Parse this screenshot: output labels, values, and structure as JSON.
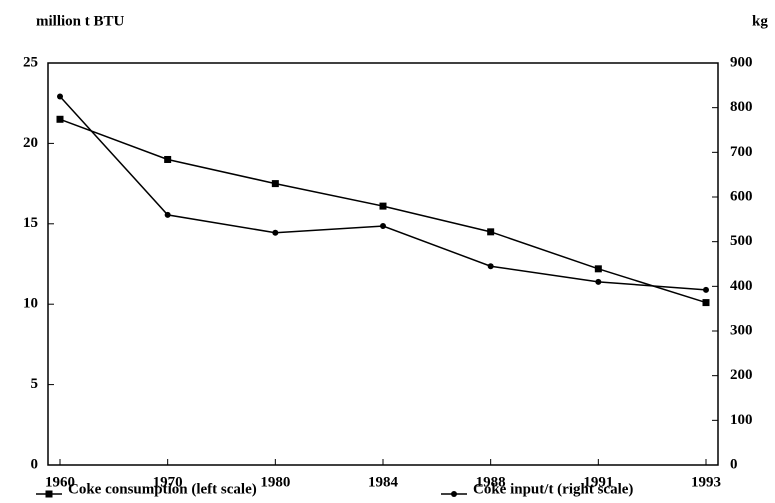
{
  "chart_data": {
    "type": "line",
    "y_axis_label": "million t BTU",
    "y2_axis_label": "kg",
    "categories": [
      "1960",
      "1970",
      "1980",
      "1984",
      "1988",
      "1991",
      "1993"
    ],
    "series": [
      {
        "name": "Coke consumption (left scale)",
        "color": "#000000",
        "marker": "square",
        "values": [
          21.5,
          19,
          17.5,
          16.1,
          14.5,
          12.2,
          10.1
        ]
      },
      {
        "name": "Coke input/t (right scale)",
        "color": "#000000",
        "marker": "diamond",
        "axis": "y2",
        "values": [
          825,
          560,
          520,
          535,
          445,
          410,
          392
        ]
      }
    ],
    "ylim": [
      0,
      25
    ],
    "yticks": [
      0,
      5,
      10,
      15,
      20,
      25
    ],
    "y2lim": [
      0,
      900
    ],
    "y2ticks": [
      0,
      100,
      200,
      300,
      400,
      500,
      600,
      700,
      800,
      900
    ],
    "grid": false
  }
}
